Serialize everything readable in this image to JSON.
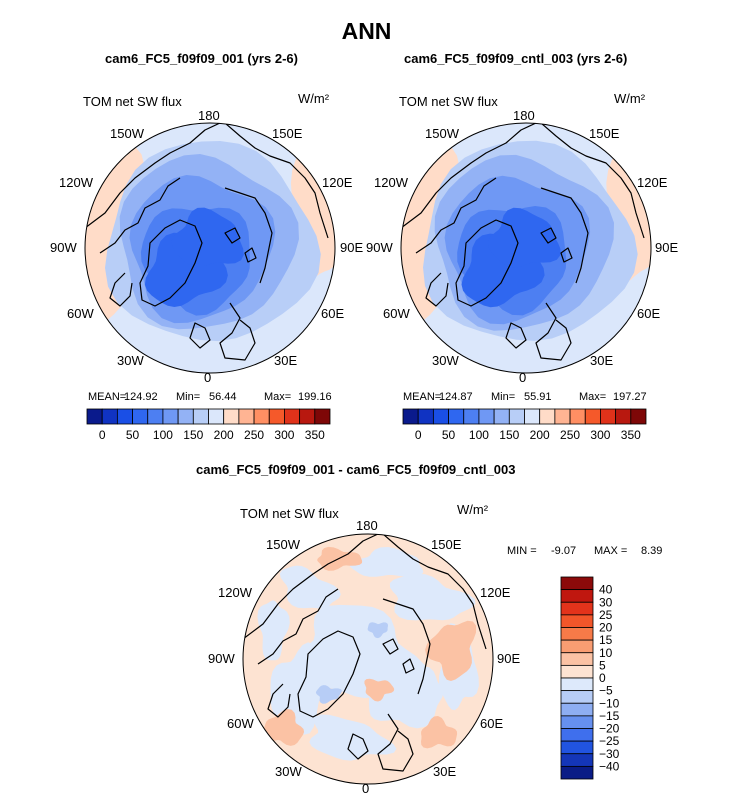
{
  "figure_title": "ANN",
  "chart_data": [
    {
      "type": "heatmap",
      "projection": "north polar stereographic",
      "title": "cam6_FC5_f09f09_001 (yrs 2-6)",
      "variable": "TOM net SW flux",
      "units": "W/m²",
      "lon_labels": [
        "180",
        "150E",
        "120E",
        "90E",
        "60E",
        "30E",
        "0",
        "30W",
        "60W",
        "90W",
        "120W",
        "150W"
      ],
      "stats": {
        "mean_label": "MEAN=",
        "mean": 124.92,
        "min_label": "Min=",
        "min": 56.44,
        "max_label": "Max=",
        "max": 199.16
      },
      "levels": [
        25,
        50,
        75,
        100,
        125,
        150,
        175,
        200,
        225,
        250,
        275,
        300,
        325,
        350
      ],
      "colorbar_labels": [
        "0",
        "50",
        "100",
        "150",
        "200",
        "250",
        "300",
        "350"
      ],
      "colors": [
        "#0a1a8c",
        "#1033c2",
        "#1a4fe6",
        "#2f67f0",
        "#4d7ff2",
        "#6f98f4",
        "#93b2f5",
        "#b8cef7",
        "#dbe7fb",
        "#ffdcc8",
        "#ffb493",
        "#ff8f63",
        "#f5592a",
        "#e0321a",
        "#b8180f",
        "#7e0707"
      ]
    },
    {
      "type": "heatmap",
      "projection": "north polar stereographic",
      "title": "cam6_FC5_f09f09_cntl_003 (yrs 2-6)",
      "variable": "TOM net SW flux",
      "units": "W/m²",
      "lon_labels": [
        "180",
        "150E",
        "120E",
        "90E",
        "60E",
        "30E",
        "0",
        "30W",
        "60W",
        "90W",
        "120W",
        "150W"
      ],
      "stats": {
        "mean_label": "MEAN=",
        "mean": 124.87,
        "min_label": "Min=",
        "min": 55.91,
        "max_label": "Max=",
        "max": 197.27
      },
      "levels": [
        25,
        50,
        75,
        100,
        125,
        150,
        175,
        200,
        225,
        250,
        275,
        300,
        325,
        350
      ],
      "colorbar_labels": [
        "0",
        "50",
        "100",
        "150",
        "200",
        "250",
        "300",
        "350"
      ],
      "colors": [
        "#0a1a8c",
        "#1033c2",
        "#1a4fe6",
        "#2f67f0",
        "#4d7ff2",
        "#6f98f4",
        "#93b2f5",
        "#b8cef7",
        "#dbe7fb",
        "#ffdcc8",
        "#ffb493",
        "#ff8f63",
        "#f5592a",
        "#e0321a",
        "#b8180f",
        "#7e0707"
      ]
    },
    {
      "type": "heatmap",
      "projection": "north polar stereographic",
      "title": "cam6_FC5_f09f09_001 - cam6_FC5_f09f09_cntl_003",
      "variable": "TOM net SW flux",
      "units": "W/m²",
      "lon_labels": [
        "180",
        "150E",
        "120E",
        "90E",
        "60E",
        "30E",
        "0",
        "30W",
        "60W",
        "90W",
        "120W",
        "150W"
      ],
      "stats": {
        "min_label": "MIN =",
        "min": -9.07,
        "max_label": "MAX =",
        "max": 8.39
      },
      "colorbar_labels": [
        "40",
        "30",
        "25",
        "20",
        "15",
        "10",
        "5",
        "0",
        "−5",
        "−10",
        "−15",
        "−20",
        "−25",
        "−30",
        "−40"
      ],
      "colors": [
        "#8c0a0a",
        "#c0170f",
        "#e3331b",
        "#f2562a",
        "#f77a48",
        "#f99d72",
        "#fbc2a4",
        "#fde3d2",
        "#dde9fb",
        "#b7cdf6",
        "#8eaef2",
        "#6690ef",
        "#3f6fed",
        "#2154e0",
        "#1436b8",
        "#0a1c86"
      ]
    }
  ]
}
